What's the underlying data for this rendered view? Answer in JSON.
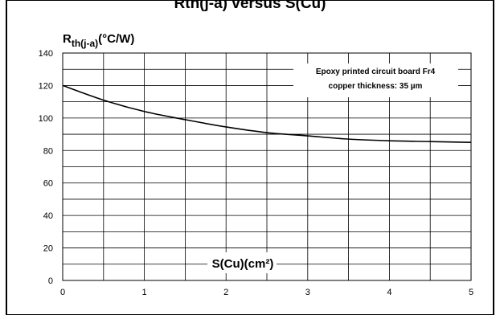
{
  "chart_data": {
    "type": "line",
    "title_partial": "Rth(j-a) versus S(Cu)",
    "ylabel_main": "R",
    "ylabel_sub": "th(j-a)",
    "ylabel_unit": "(°C/W)",
    "xlabel": "S(Cu)(cm²)",
    "annotation": [
      "Epoxy printed circuit board Fr4",
      "copper thickness: 35 µm"
    ],
    "xlim": [
      0,
      5
    ],
    "ylim": [
      0,
      140
    ],
    "x_ticks": [
      0,
      1,
      2,
      3,
      4,
      5
    ],
    "y_ticks": [
      0,
      20,
      40,
      60,
      80,
      100,
      120,
      140
    ],
    "grid": true,
    "series": [
      {
        "x": [
          0,
          0.5,
          1,
          1.5,
          2,
          2.5,
          3,
          3.5,
          4,
          4.5,
          5
        ],
        "y": [
          120,
          111,
          104,
          99,
          94.5,
          91,
          89,
          87,
          86,
          85.5,
          85
        ]
      }
    ]
  }
}
